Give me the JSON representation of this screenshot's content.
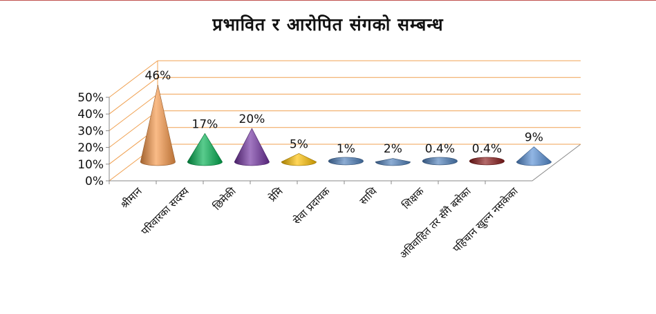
{
  "chart_data": {
    "type": "bar",
    "subtype": "3d-cone",
    "title": "प्रभावित र आरोपित संगको सम्बन्ध",
    "categories": [
      "श्रीमान",
      "परिवारका सदस्य",
      "छिमेकी",
      "प्रेमि",
      "सेवा प्रदायक",
      "साथि",
      "शिक्षक",
      "अविवाहित तर सँगै बसेका",
      "पहिचान खुल्न नसकेका"
    ],
    "values": [
      46,
      17,
      20,
      5,
      1,
      2,
      0.4,
      0.4,
      9
    ],
    "data_labels": [
      "46%",
      "17%",
      "20%",
      "5%",
      "1%",
      "2%",
      "0.4%",
      "0.4%",
      "9%"
    ],
    "colors": [
      "#f79646",
      "#00b050",
      "#7030a0",
      "#ffc000",
      "#4f81bd",
      "#4f81bd",
      "#4f81bd",
      "#8b1a1a",
      "#558ed5"
    ],
    "yticks": [
      "0%",
      "10%",
      "20%",
      "30%",
      "40%",
      "50%"
    ],
    "ylim": [
      0,
      50
    ],
    "grid": true,
    "gridline_color": "#f0a050",
    "legend": "none"
  }
}
